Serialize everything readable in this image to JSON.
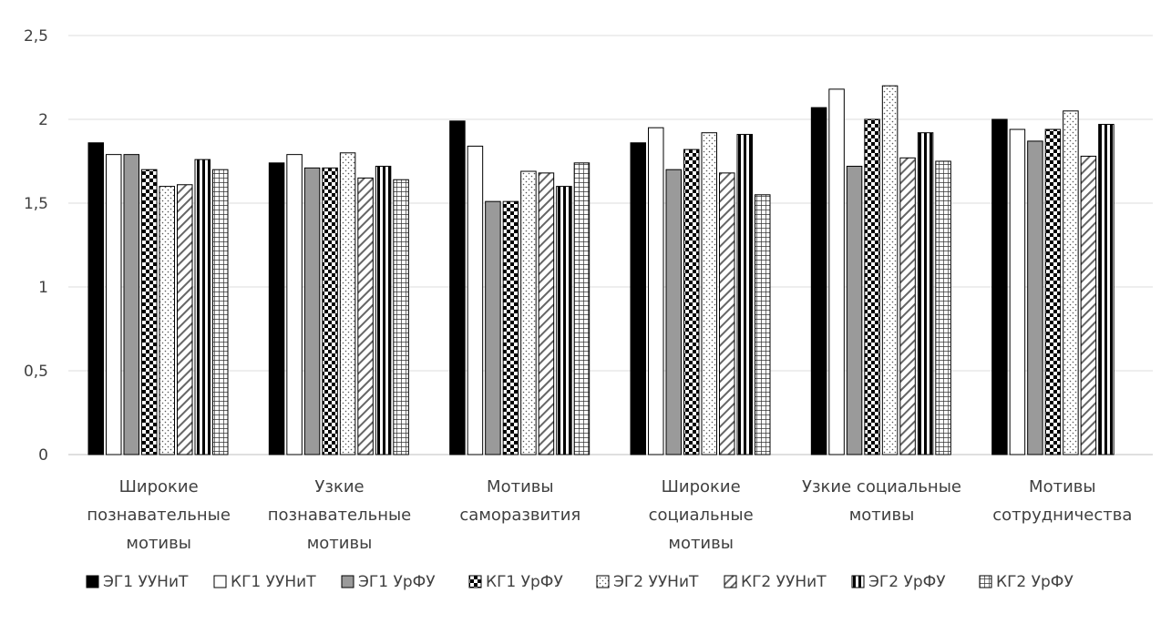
{
  "chart_data": {
    "type": "bar",
    "title": "",
    "xlabel": "",
    "ylabel": "",
    "ylim": [
      0,
      2.5
    ],
    "yticks": [
      "0",
      "0,5",
      "1",
      "1,5",
      "2",
      "2,5"
    ],
    "grid": true,
    "legend_position": "bottom",
    "categories": [
      [
        "Широкие",
        "познавательные",
        "мотивы"
      ],
      [
        "Узкие",
        "познавательные",
        "мотивы"
      ],
      [
        "Мотивы",
        "саморазвития"
      ],
      [
        "Широкие",
        "социальные",
        "мотивы"
      ],
      [
        "Узкие социальные",
        "мотивы"
      ],
      [
        "Мотивы",
        "сотрудничества"
      ]
    ],
    "series": [
      {
        "name": "ЭГ1 УУНиТ",
        "pattern": "solid-black",
        "values": [
          1.86,
          1.74,
          1.99,
          1.86,
          2.07,
          2.0
        ]
      },
      {
        "name": "КГ1 УУНиТ",
        "pattern": "white",
        "values": [
          1.79,
          1.79,
          1.84,
          1.95,
          2.18,
          1.94
        ]
      },
      {
        "name": "ЭГ1 УрФУ",
        "pattern": "solid-gray",
        "values": [
          1.79,
          1.71,
          1.51,
          1.7,
          1.72,
          1.87
        ]
      },
      {
        "name": "КГ1 УрФУ",
        "pattern": "checker",
        "values": [
          1.7,
          1.71,
          1.51,
          1.82,
          2.0,
          1.94
        ]
      },
      {
        "name": "ЭГ2 УУНиТ",
        "pattern": "dotted",
        "values": [
          1.6,
          1.8,
          1.69,
          1.92,
          2.2,
          2.05
        ]
      },
      {
        "name": "КГ2 УУНиТ",
        "pattern": "diagonal",
        "values": [
          1.61,
          1.65,
          1.68,
          1.68,
          1.77,
          1.78
        ]
      },
      {
        "name": "ЭГ2 УрФУ",
        "pattern": "vertical-stripes",
        "values": [
          1.76,
          1.72,
          1.6,
          1.91,
          1.92,
          1.97
        ]
      },
      {
        "name": "КГ2 УрФУ",
        "pattern": "grid",
        "values": [
          1.7,
          1.64,
          1.74,
          1.55,
          1.75,
          null
        ]
      }
    ]
  }
}
